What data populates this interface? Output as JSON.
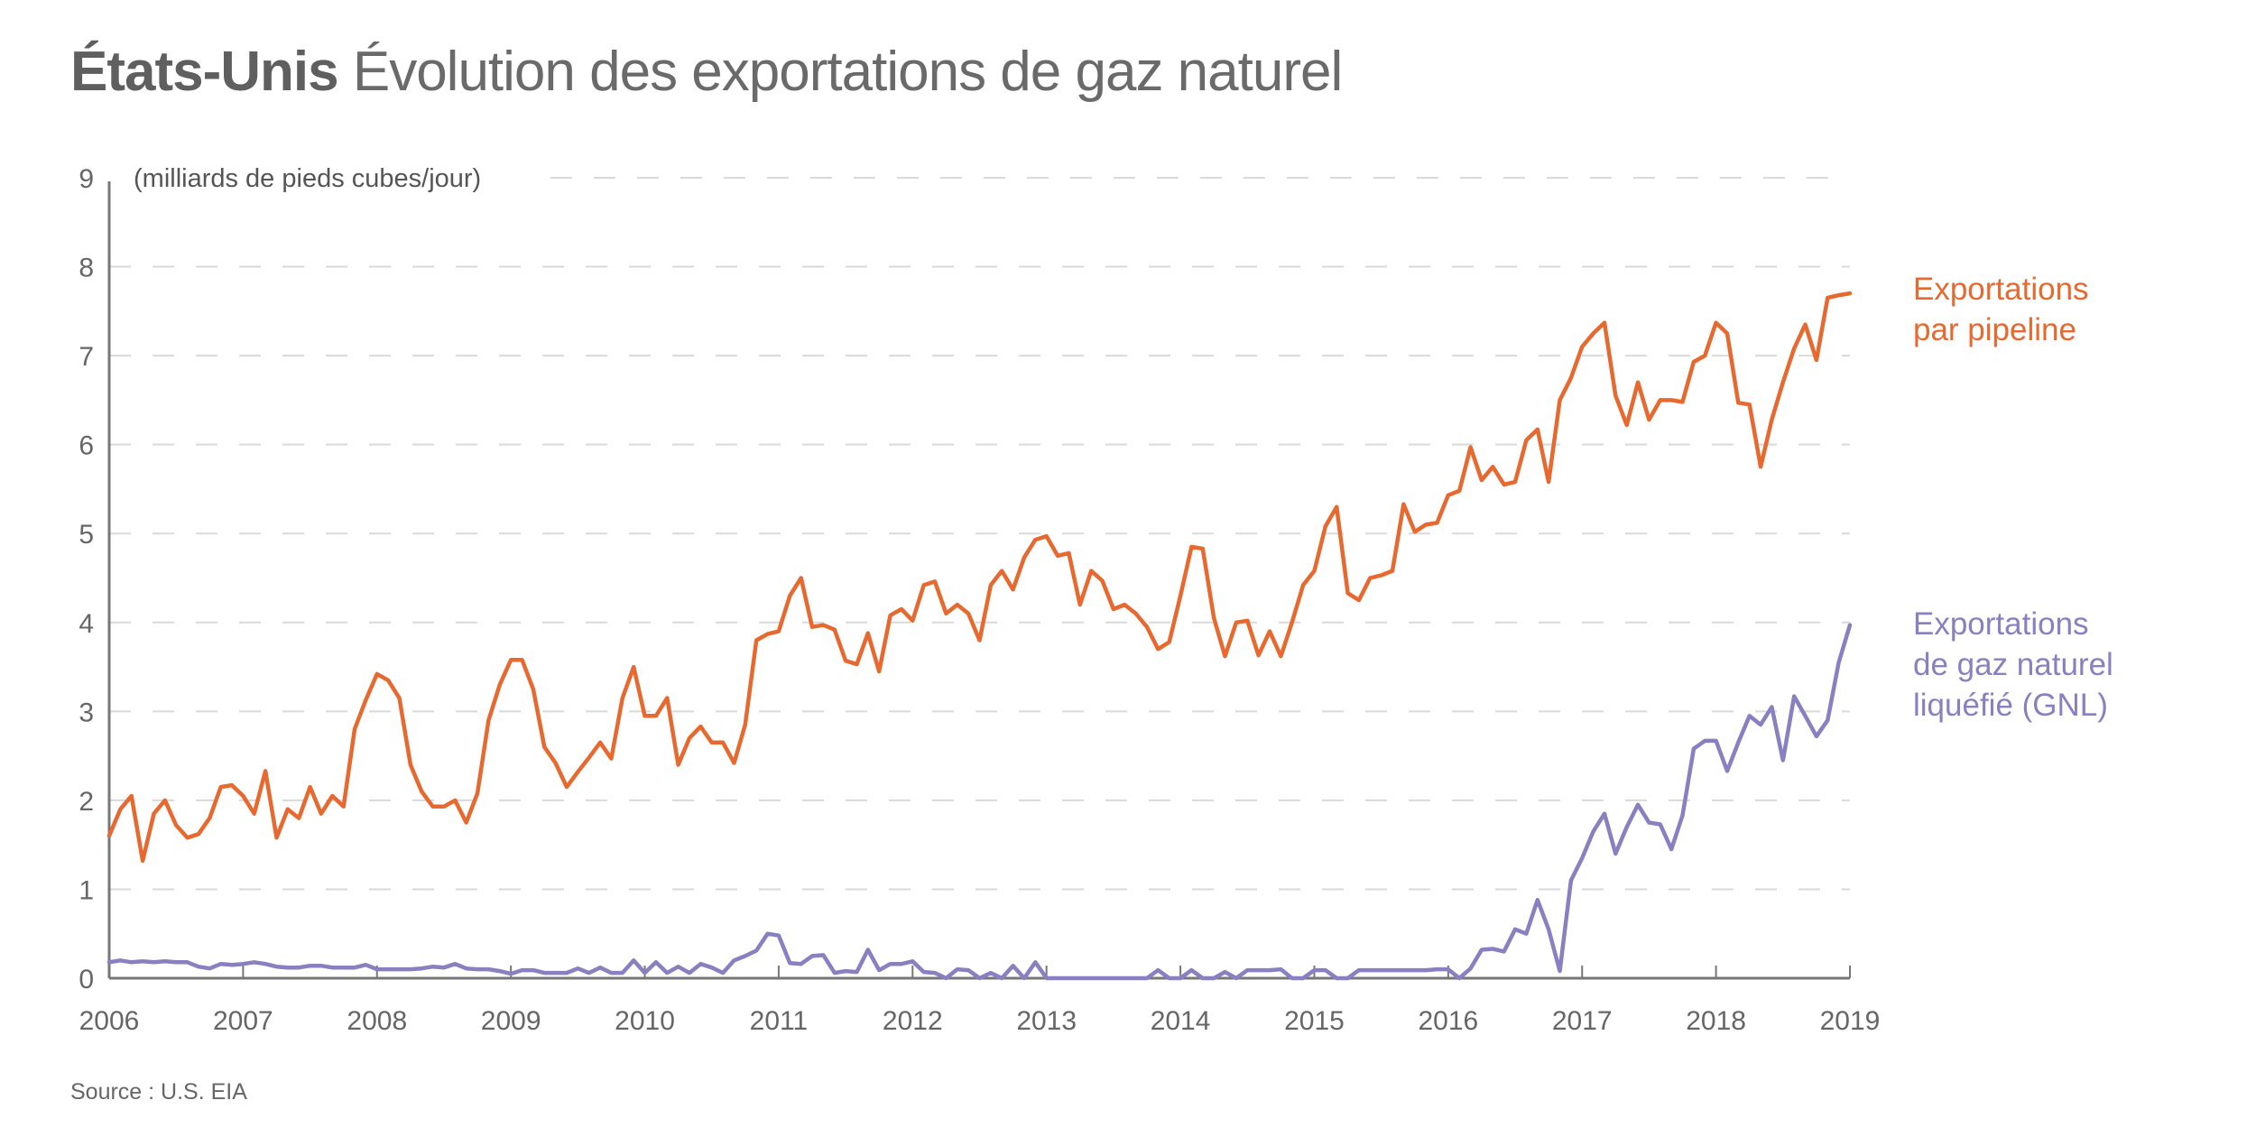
{
  "header": {
    "title_bold": "États-Unis",
    "title_rest": "Évolution des exportations de gaz naturel"
  },
  "footer": {
    "source": "Source : U.S. EIA"
  },
  "colors": {
    "pipeline": "#E8692F",
    "lng": "#8880C0",
    "axis": "#777777",
    "grid": "#d9d9d9",
    "text": "#666666"
  },
  "chart_data": {
    "type": "line",
    "title": "États-Unis Évolution des exportations de gaz naturel",
    "xlabel": "",
    "ylabel": "(milliards de pieds cubes/jour)",
    "unit_label": "(milliards de pieds cubes/jour)",
    "xlim": [
      2006,
      2019
    ],
    "ylim": [
      0,
      9
    ],
    "x_ticks": [
      "2006",
      "2007",
      "2008",
      "2009",
      "2010",
      "2011",
      "2012",
      "2013",
      "2014",
      "2015",
      "2016",
      "2017",
      "2018",
      "2019"
    ],
    "y_ticks": [
      "0",
      "1",
      "2",
      "3",
      "4",
      "5",
      "6",
      "7",
      "8",
      "9"
    ],
    "grid": true,
    "frequency": "monthly",
    "start": "2006-01",
    "series": [
      {
        "name": "Exportations par pipeline",
        "label_lines": [
          "Exportations",
          "par pipeline"
        ],
        "color": "#E8692F",
        "values": [
          1.6,
          1.9,
          2.05,
          1.32,
          1.85,
          2.0,
          1.72,
          1.58,
          1.62,
          1.8,
          2.15,
          2.17,
          2.05,
          1.85,
          2.33,
          1.58,
          1.9,
          1.8,
          2.15,
          1.85,
          2.05,
          1.93,
          2.8,
          3.13,
          3.42,
          3.35,
          3.15,
          2.4,
          2.1,
          1.93,
          1.93,
          2.0,
          1.75,
          2.08,
          2.9,
          3.3,
          3.58,
          3.58,
          3.25,
          2.6,
          2.42,
          2.15,
          2.32,
          2.48,
          2.65,
          2.47,
          3.15,
          3.5,
          2.95,
          2.95,
          3.15,
          2.4,
          2.7,
          2.83,
          2.65,
          2.65,
          2.42,
          2.85,
          3.8,
          3.87,
          3.9,
          4.3,
          4.5,
          3.95,
          3.97,
          3.92,
          3.57,
          3.53,
          3.88,
          3.45,
          4.08,
          4.15,
          4.02,
          4.42,
          4.46,
          4.1,
          4.2,
          4.1,
          3.8,
          4.42,
          4.58,
          4.37,
          4.73,
          4.93,
          4.97,
          4.75,
          4.78,
          4.2,
          4.58,
          4.47,
          4.15,
          4.2,
          4.1,
          3.95,
          3.7,
          3.78,
          4.3,
          4.85,
          4.83,
          4.05,
          3.62,
          4.0,
          4.02,
          3.63,
          3.9,
          3.62,
          4.0,
          4.42,
          4.58,
          5.08,
          5.3,
          4.33,
          4.25,
          4.5,
          4.53,
          4.58,
          5.33,
          5.02,
          5.1,
          5.12,
          5.43,
          5.48,
          5.97,
          5.6,
          5.75,
          5.55,
          5.58,
          6.05,
          6.17,
          5.58,
          6.5,
          6.75,
          7.1,
          7.25,
          7.37,
          6.55,
          6.22,
          6.7,
          6.28,
          6.5,
          6.5,
          6.48,
          6.93,
          7.0,
          7.37,
          7.25,
          6.47,
          6.45,
          5.75,
          6.28,
          6.7,
          7.08,
          7.35,
          6.95,
          7.65,
          7.68,
          7.7
        ]
      },
      {
        "name": "Exportations de gaz naturel liquéfié (GNL)",
        "label_lines": [
          "Exportations",
          "de gaz naturel",
          "liquéfié (GNL)"
        ],
        "color": "#8880C0",
        "values": [
          0.18,
          0.2,
          0.18,
          0.19,
          0.18,
          0.19,
          0.18,
          0.18,
          0.13,
          0.11,
          0.16,
          0.15,
          0.16,
          0.18,
          0.16,
          0.13,
          0.12,
          0.12,
          0.14,
          0.14,
          0.12,
          0.12,
          0.12,
          0.15,
          0.1,
          0.1,
          0.1,
          0.1,
          0.11,
          0.13,
          0.12,
          0.16,
          0.11,
          0.1,
          0.1,
          0.08,
          0.05,
          0.09,
          0.09,
          0.06,
          0.06,
          0.06,
          0.11,
          0.06,
          0.12,
          0.06,
          0.06,
          0.2,
          0.06,
          0.18,
          0.06,
          0.13,
          0.06,
          0.16,
          0.12,
          0.06,
          0.2,
          0.25,
          0.31,
          0.5,
          0.48,
          0.17,
          0.16,
          0.25,
          0.26,
          0.06,
          0.08,
          0.07,
          0.32,
          0.09,
          0.16,
          0.16,
          0.19,
          0.07,
          0.06,
          0.0,
          0.1,
          0.09,
          0.0,
          0.06,
          0.0,
          0.14,
          0.0,
          0.18,
          0.0,
          0.0,
          0.0,
          0.0,
          0.0,
          0.0,
          0.0,
          0.0,
          0.0,
          0.0,
          0.09,
          0.0,
          0.0,
          0.09,
          0.0,
          0.0,
          0.07,
          0.0,
          0.09,
          0.09,
          0.09,
          0.1,
          0.0,
          0.0,
          0.09,
          0.09,
          0.0,
          0.0,
          0.09,
          0.09,
          0.09,
          0.09,
          0.09,
          0.09,
          0.09,
          0.1,
          0.1,
          0.0,
          0.11,
          0.32,
          0.33,
          0.3,
          0.55,
          0.5,
          0.88,
          0.55,
          0.08,
          1.1,
          1.35,
          1.65,
          1.85,
          1.4,
          1.7,
          1.95,
          1.75,
          1.73,
          1.45,
          1.83,
          2.58,
          2.67,
          2.67,
          2.33,
          2.65,
          2.95,
          2.85,
          3.05,
          2.45,
          3.17,
          2.95,
          2.72,
          2.9,
          3.55,
          3.97
        ]
      }
    ],
    "legend": "right, inline labels at line ends",
    "source": "Source : U.S. EIA"
  }
}
